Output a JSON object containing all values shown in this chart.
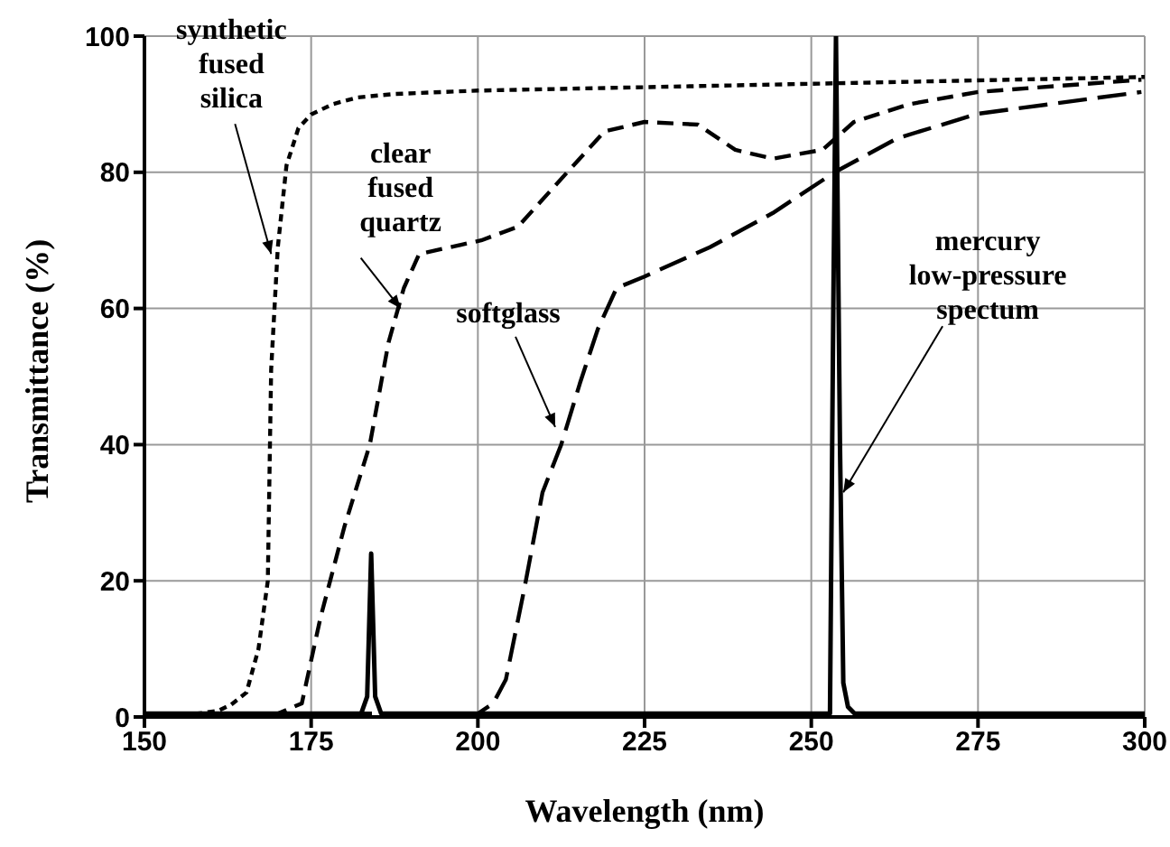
{
  "chart_data": {
    "type": "line",
    "xlabel": "Wavelength (nm)",
    "ylabel": "Transmittance (%)",
    "xlim": [
      150,
      300
    ],
    "ylim": [
      0,
      100
    ],
    "xticks": [
      150,
      175,
      200,
      225,
      250,
      275,
      300
    ],
    "yticks": [
      0,
      20,
      40,
      60,
      80,
      100
    ],
    "grid": true,
    "legend": false,
    "marker": "none",
    "series": [
      {
        "color": "#000000",
        "line_style": "dotted",
        "x": [
          150,
          155,
          158,
          161,
          163,
          165.3,
          167.1,
          168.5,
          169,
          170,
          171.3,
          173.1,
          175,
          178.2,
          182,
          187.5,
          200,
          225,
          250,
          275,
          300
        ],
        "values": [
          0.5,
          0.5,
          0.5,
          0.9,
          1.8,
          3.6,
          10,
          20,
          51,
          69,
          81,
          86.5,
          88.5,
          90,
          91,
          91.5,
          92,
          92.5,
          93,
          93.5,
          94
        ]
      },
      {
        "color": "#000000",
        "line_style": "dashed",
        "x": [
          150,
          165,
          170,
          173.6,
          176.4,
          180,
          183.8,
          186.6,
          188.9,
          191.2,
          200.5,
          206,
          213.4,
          219,
          225,
          233,
          238.6,
          244.2,
          251.7,
          256.4,
          264.7,
          275,
          299.5
        ],
        "values": [
          0.5,
          0.5,
          0.5,
          2,
          14.6,
          28,
          40,
          55,
          63,
          68,
          70,
          72,
          80,
          86,
          87.4,
          87,
          83.3,
          82,
          83.3,
          87.4,
          90,
          91.8,
          93.6
        ]
      },
      {
        "color": "#000000",
        "line_style": "dashed",
        "x": [
          150,
          190,
          200,
          202.3,
          204.2,
          207,
          209.7,
          212.5,
          215.3,
          218,
          220.8,
          225,
          234.8,
          244.2,
          253.5,
          262.9,
          275,
          299.5
        ],
        "values": [
          0.5,
          0.5,
          0.5,
          2,
          5.5,
          19,
          33,
          40,
          49,
          57,
          63,
          64.7,
          69,
          74,
          80,
          85,
          88.6,
          91.8
        ]
      },
      {
        "color": "#000000",
        "line_style": "solid",
        "x": [
          150,
          170,
          182.5,
          183.4,
          184,
          184.6,
          185.5,
          200,
          230,
          252.8,
          253.3,
          253.7,
          254.3,
          254.8,
          255.5,
          256.5,
          270,
          300
        ],
        "values": [
          0.5,
          0.5,
          0.5,
          3,
          24,
          3,
          0.5,
          0.5,
          0.5,
          0.5,
          60,
          100,
          40,
          5,
          1.5,
          0.5,
          0.5,
          0.5
        ]
      }
    ],
    "annotations": [
      {
        "text": "synthetic fused silica",
        "x": 169,
        "y": 68
      },
      {
        "text": "clear fused quartz",
        "x": 188.4,
        "y": 60
      },
      {
        "text": "softglass",
        "x": 211.6,
        "y": 42.6
      },
      {
        "text": "mercury low-pressure spectum",
        "x": 254.8,
        "y": 33
      }
    ]
  }
}
